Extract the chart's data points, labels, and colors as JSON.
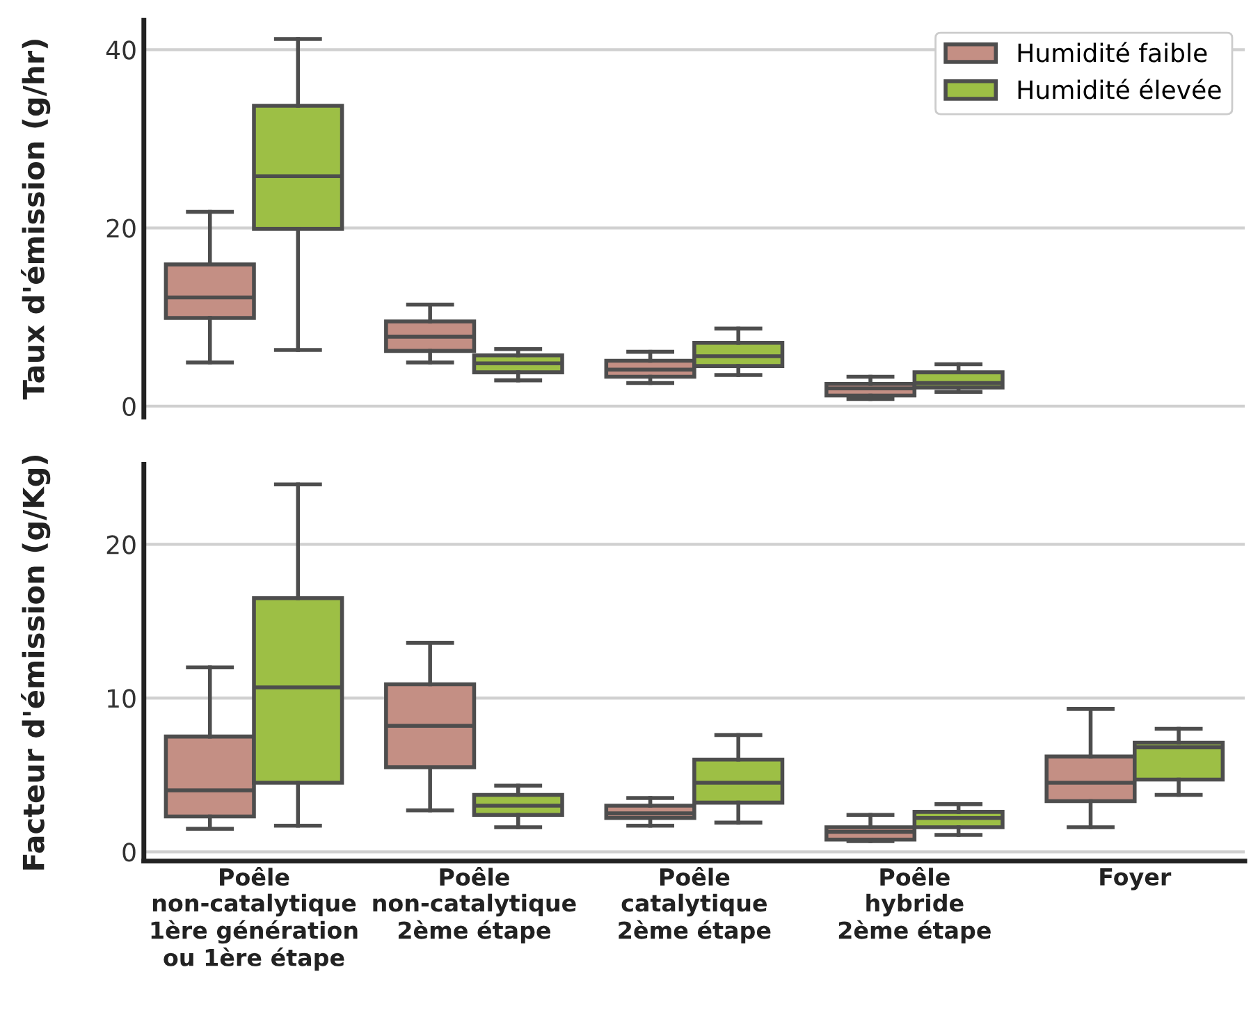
{
  "chart_data": [
    {
      "type": "box",
      "ylabel": "Taux d'émission (g/hr)",
      "ylim": [
        -1.2,
        43.3
      ],
      "yticks": [
        0,
        20,
        40
      ],
      "grid": "y",
      "legend": "top right",
      "tick_labels": "y",
      "series": [
        {
          "name": "Humidité faible",
          "color": "#c48f84",
          "boxes": [
            {
              "low": 4.9,
              "q1": 9.9,
              "median": 12.2,
              "q3": 15.9,
              "high": 21.8
            },
            {
              "low": 4.9,
              "q1": 6.2,
              "median": 7.8,
              "q3": 9.5,
              "high": 11.4
            },
            {
              "low": 2.6,
              "q1": 3.3,
              "median": 4.1,
              "q3": 5.1,
              "high": 6.1
            },
            {
              "low": 0.8,
              "q1": 1.2,
              "median": 2.0,
              "q3": 2.5,
              "high": 3.3
            },
            null
          ]
        },
        {
          "name": "Humidité élevée",
          "color": "#9dbf45",
          "boxes": [
            {
              "low": 6.3,
              "q1": 19.9,
              "median": 25.8,
              "q3": 33.7,
              "high": 41.2
            },
            {
              "low": 2.9,
              "q1": 3.8,
              "median": 4.8,
              "q3": 5.7,
              "high": 6.4
            },
            {
              "low": 3.5,
              "q1": 4.5,
              "median": 5.6,
              "q3": 7.1,
              "high": 8.7
            },
            {
              "low": 1.6,
              "q1": 2.1,
              "median": 2.6,
              "q3": 3.8,
              "high": 4.7
            },
            null
          ]
        }
      ]
    },
    {
      "type": "box",
      "ylabel": "Facteur d'émission (g/Kg)",
      "categories": [
        "Poêle\nnon-catalytique\n1ère génération\nou 1ère étape",
        "Poêle\nnon-catalytique\n2ème étape",
        "Poêle\ncatalytique\n2ème étape",
        "Poêle\nhybride\n2ème étape",
        "Foyer"
      ],
      "ylim": [
        -0.6,
        25.2
      ],
      "yticks": [
        0,
        10,
        20
      ],
      "grid": "y",
      "series": [
        {
          "color": "#c48f84",
          "boxes": [
            {
              "low": 1.5,
              "q1": 2.3,
              "median": 4.0,
              "q3": 7.5,
              "high": 12.0
            },
            {
              "low": 2.7,
              "q1": 5.5,
              "median": 8.2,
              "q3": 10.9,
              "high": 13.6
            },
            {
              "low": 1.7,
              "q1": 2.2,
              "median": 2.5,
              "q3": 3.0,
              "high": 3.5
            },
            {
              "low": 0.7,
              "q1": 0.8,
              "median": 1.3,
              "q3": 1.6,
              "high": 2.4
            },
            {
              "low": 1.6,
              "q1": 3.3,
              "median": 4.5,
              "q3": 6.2,
              "high": 9.3
            }
          ]
        },
        {
          "color": "#9dbf45",
          "boxes": [
            {
              "low": 1.7,
              "q1": 4.5,
              "median": 10.7,
              "q3": 16.5,
              "high": 23.9
            },
            {
              "low": 1.6,
              "q1": 2.4,
              "median": 3.0,
              "q3": 3.7,
              "high": 4.3
            },
            {
              "low": 1.9,
              "q1": 3.2,
              "median": 4.5,
              "q3": 6.0,
              "high": 7.6
            },
            {
              "low": 1.1,
              "q1": 1.6,
              "median": 2.2,
              "q3": 2.6,
              "high": 3.1
            },
            {
              "low": 3.7,
              "q1": 4.7,
              "median": 6.8,
              "q3": 7.1,
              "high": 8.0
            }
          ]
        }
      ]
    }
  ]
}
